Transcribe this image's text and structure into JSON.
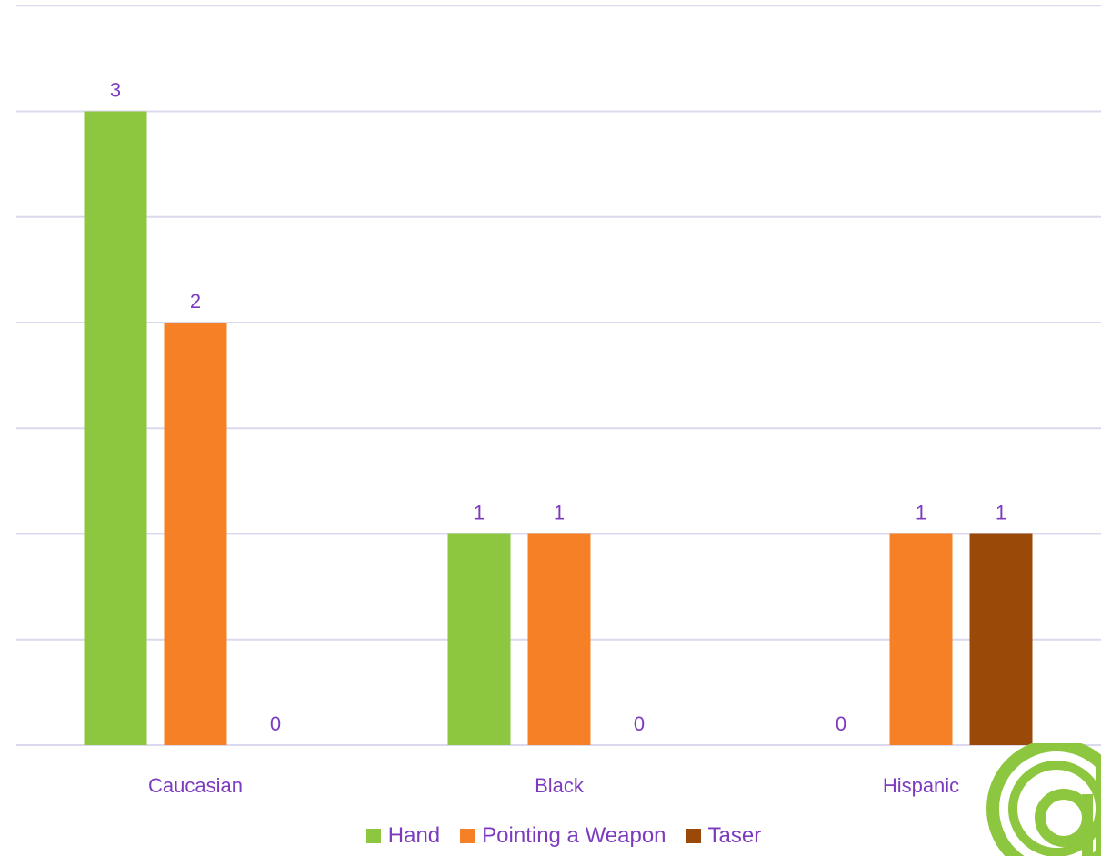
{
  "chart_data": {
    "type": "bar",
    "categories": [
      "Caucasian",
      "Black",
      "Hispanic"
    ],
    "series": [
      {
        "name": "Hand",
        "values": [
          3,
          1,
          0
        ],
        "color": "#8dc63f"
      },
      {
        "name": "Pointing a Weapon",
        "values": [
          2,
          1,
          1
        ],
        "color": "#f58025"
      },
      {
        "name": "Taser",
        "values": [
          0,
          0,
          1
        ],
        "color": "#9a4908"
      }
    ],
    "ylim": [
      0,
      3.5
    ],
    "grid": true,
    "legend_position": "bottom",
    "label_color": "#7c3bbf",
    "grid_color": "#dcd8ee"
  },
  "logo": {
    "icon": "organization-logo-icon",
    "color": "#8dc63f"
  }
}
